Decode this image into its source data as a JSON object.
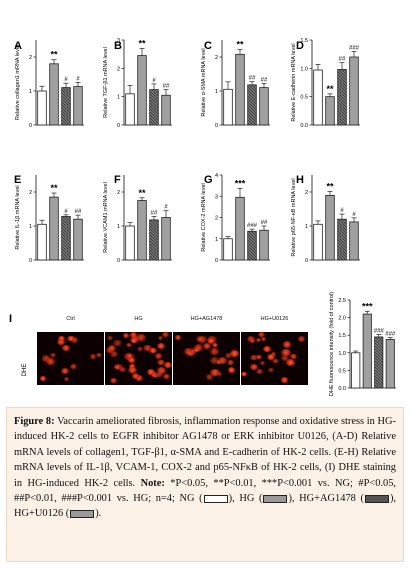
{
  "chart_data": [
    {
      "panel": "A",
      "type": "bar",
      "ylabel": "Relative collagen1 mRNA level",
      "ylim": [
        0,
        2.5
      ],
      "yticks": [
        "0",
        "1",
        "2"
      ],
      "categories": [
        "NG",
        "HG",
        "HG+AG1478",
        "HG+U0126"
      ],
      "values": [
        1.0,
        1.8,
        1.1,
        1.13
      ],
      "errors": [
        0.14,
        0.12,
        0.13,
        0.12
      ],
      "annotations": [
        "",
        "**",
        "#",
        "#"
      ]
    },
    {
      "panel": "B",
      "type": "bar",
      "ylabel": "Relative TGF-β1 mRNA level",
      "ylim": [
        0,
        3
      ],
      "yticks": [
        "0",
        "1",
        "2",
        "3"
      ],
      "categories": [
        "NG",
        "HG",
        "HG+AG1478",
        "HG+U0126"
      ],
      "values": [
        1.1,
        2.45,
        1.25,
        1.05
      ],
      "errors": [
        0.3,
        0.25,
        0.2,
        0.2
      ],
      "annotations": [
        "",
        "**",
        "#",
        "##"
      ]
    },
    {
      "panel": "C",
      "type": "bar",
      "ylabel": "Relative α-SMA mRNA level",
      "ylim": [
        0,
        2.5
      ],
      "yticks": [
        "0",
        "1",
        "2"
      ],
      "categories": [
        "NG",
        "HG",
        "HG+AG1478",
        "HG+U0126"
      ],
      "values": [
        1.05,
        2.08,
        1.18,
        1.1
      ],
      "errors": [
        0.22,
        0.14,
        0.1,
        0.12
      ],
      "annotations": [
        "",
        "**",
        "##",
        "##"
      ]
    },
    {
      "panel": "D",
      "type": "bar",
      "ylabel": "Relative E-cadherin mRNA level",
      "ylim": [
        0,
        1.5
      ],
      "yticks": [
        "0.0",
        "0.5",
        "1.0",
        "1.5"
      ],
      "categories": [
        "NG",
        "HG",
        "HG+AG1478",
        "HG+U0126"
      ],
      "values": [
        0.97,
        0.5,
        0.98,
        1.2
      ],
      "errors": [
        0.1,
        0.05,
        0.12,
        0.1
      ],
      "annotations": [
        "",
        "**",
        "##",
        "###"
      ]
    },
    {
      "panel": "E",
      "type": "bar",
      "ylabel": "Relative IL-1β mRNA level",
      "ylim": [
        0,
        2.5
      ],
      "yticks": [
        "0",
        "1",
        "2"
      ],
      "categories": [
        "NG",
        "HG",
        "HG+AG1478",
        "HG+U0126"
      ],
      "values": [
        1.05,
        1.85,
        1.28,
        1.2
      ],
      "errors": [
        0.12,
        0.12,
        0.05,
        0.12
      ],
      "annotations": [
        "",
        "**",
        "#",
        "##"
      ]
    },
    {
      "panel": "F",
      "type": "bar",
      "ylabel": "Relative VCAM1 mRNA level",
      "ylim": [
        0,
        2.5
      ],
      "yticks": [
        "0",
        "1",
        "2"
      ],
      "categories": [
        "NG",
        "HG",
        "HG+AG1478",
        "HG+U0126"
      ],
      "values": [
        1.0,
        1.75,
        1.18,
        1.25
      ],
      "errors": [
        0.1,
        0.08,
        0.1,
        0.2
      ],
      "annotations": [
        "",
        "**",
        "##",
        "#"
      ]
    },
    {
      "panel": "G",
      "type": "bar",
      "ylabel": "Relative COX-2 mRNA level",
      "ylim": [
        0,
        4
      ],
      "yticks": [
        "0",
        "1",
        "2",
        "3",
        "4"
      ],
      "categories": [
        "NG",
        "HG",
        "HG+AG1478",
        "HG+U0126"
      ],
      "values": [
        1.0,
        2.95,
        1.35,
        1.4
      ],
      "errors": [
        0.1,
        0.42,
        0.1,
        0.2
      ],
      "annotations": [
        "",
        "***",
        "###",
        "##"
      ]
    },
    {
      "panel": "H",
      "type": "bar",
      "ylabel": "Relative p65-NF-κB mRNA level",
      "ylim": [
        0,
        2.5
      ],
      "yticks": [
        "0",
        "1",
        "2"
      ],
      "categories": [
        "NG",
        "HG",
        "HG+AG1478",
        "HG+U0126"
      ],
      "values": [
        1.05,
        1.9,
        1.2,
        1.12
      ],
      "errors": [
        0.1,
        0.12,
        0.15,
        0.12
      ],
      "annotations": [
        "",
        "**",
        "#",
        "#"
      ]
    },
    {
      "panel": "I",
      "type": "bar",
      "ylabel": "DHE fluorescence intensity (fold of control)",
      "ylim": [
        0,
        2.5
      ],
      "yticks": [
        "0.0",
        "0.5",
        "1.0",
        "1.5",
        "2.0",
        "2.5"
      ],
      "categories": [
        "NG",
        "HG",
        "HG+AG1478",
        "HG+U0126"
      ],
      "values": [
        1.0,
        2.1,
        1.45,
        1.38
      ],
      "errors": [
        0.05,
        0.08,
        0.07,
        0.05
      ],
      "annotations": [
        "",
        "***",
        "###",
        "###"
      ]
    }
  ],
  "bar_styles": [
    {
      "group": "NG",
      "fill": "#ffffff"
    },
    {
      "group": "HG",
      "fill": "#9a9a9a"
    },
    {
      "group": "HG+AG1478",
      "fill": "#555555"
    },
    {
      "group": "HG+U0126",
      "fill": "#9a9a9a"
    }
  ],
  "panel_i": {
    "letter": "I",
    "side_label": "DHE",
    "image_labels": [
      "Ctrl",
      "HG",
      "HG+AG1478",
      "HG+U0126"
    ]
  },
  "caption": {
    "figure_label": "Figure 8:",
    "text1": " Vaccarin ameliorated fibrosis, inflammation response and oxidative stress in HG-induced HK-2 cells to EGFR inhibitor AG1478 or ERK inhibitor U0126, (A-D) Relative mRNA levels of collagen1, TGF-β1, α-SMA and E-cadherin of HK-2 cells. (E-H) Relative mRNA levels of IL-1β, VCAM-1, COX-2 and p65-NFκB of HK-2 cells, (I) DHE staining in HG-induced HK-2 cells. ",
    "note_label": "Note:",
    "text2": " *P<0.05, **P<0.01, ***P<0.001 vs. NG; #P<0.05, ##P<0.01, ###P<0.001 vs. HG; n=4; NG (",
    "legend_hg": "), HG (",
    "legend_ag": "), HG+AG1478 (",
    "legend_u0": "), HG+U0126 (",
    "legend_end": ")."
  },
  "colors": {
    "caption_bg": "#fbf1e7",
    "bar_border": "#222222",
    "dhe_bg": "#0c0000",
    "cell": "#d8301a"
  }
}
